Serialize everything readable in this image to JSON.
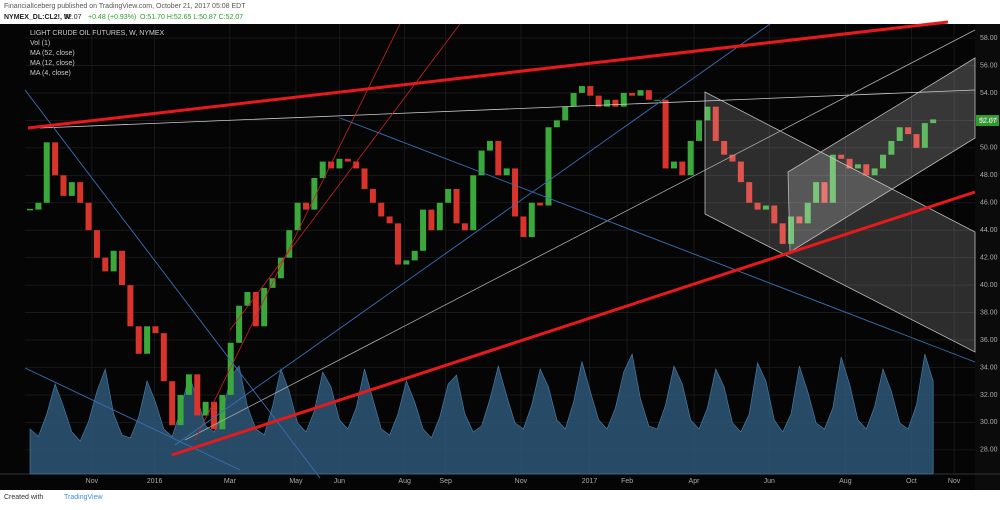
{
  "header": {
    "publisher": "FinancialIceberg published on TradingView.com, October 21, 2017 05:08 EDT",
    "symbol": "NYMEX_DL:CL2!, W",
    "last": "52.07",
    "change": "+0.48 (+0.93%)",
    "ohlc": "O:51.70 H:52.65 L:50.87 C:52.07"
  },
  "legend": {
    "title": "LIGHT CRUDE OIL FUTURES, W, NYMEX",
    "vol": "Vol (1)",
    "ma52": "MA (52, close)",
    "ma12": "MA (12, close)",
    "ma4": "MA (4, close)"
  },
  "footer": {
    "created": "Created with",
    "brand": "TradingView"
  },
  "chart_data": {
    "type": "candlestick",
    "up_color": "#3aa83a",
    "down_color": "#d9342b",
    "volume_color": "#2f5d7e",
    "xlim": [
      -0.6,
      113
    ],
    "ylim": [
      25.95,
      59.02
    ],
    "xticks": [
      {
        "value": 7.4,
        "label": "Nov"
      },
      {
        "value": 14.9,
        "label": "2016"
      },
      {
        "value": 23.9,
        "label": "Mar"
      },
      {
        "value": 31.8,
        "label": "May"
      },
      {
        "value": 37,
        "label": "Jun"
      },
      {
        "value": 44.8,
        "label": "Aug"
      },
      {
        "value": 49.7,
        "label": "Sep"
      },
      {
        "value": 58.7,
        "label": "Nov"
      },
      {
        "value": 66.9,
        "label": "2017"
      },
      {
        "value": 71.4,
        "label": "Feb"
      },
      {
        "value": 79.4,
        "label": "Apr"
      },
      {
        "value": 88.4,
        "label": "Jun"
      },
      {
        "value": 97.5,
        "label": "Aug"
      },
      {
        "value": 105.4,
        "label": "Oct"
      },
      {
        "value": 110.5,
        "label": "Nov"
      }
    ],
    "yticks": [
      {
        "value": 28,
        "label": "28.00"
      },
      {
        "value": 30,
        "label": "30.00"
      },
      {
        "value": 32,
        "label": "32.00"
      },
      {
        "value": 34,
        "label": "34.00"
      },
      {
        "value": 36,
        "label": "36.00"
      },
      {
        "value": 38,
        "label": "38.00"
      },
      {
        "value": 40,
        "label": "40.00"
      },
      {
        "value": 42,
        "label": "42.00"
      },
      {
        "value": 44,
        "label": "44.00"
      },
      {
        "value": 46,
        "label": "46.00"
      },
      {
        "value": 48,
        "label": "48.00"
      },
      {
        "value": 50,
        "label": "50.00"
      },
      {
        "value": 52,
        "label": "52.00"
      },
      {
        "value": 54,
        "label": "54.00"
      },
      {
        "value": 56,
        "label": "56.00"
      },
      {
        "value": 58,
        "label": "58.00"
      }
    ],
    "close": [
      45.5,
      46.0,
      50.4,
      48.0,
      46.5,
      47.5,
      46.0,
      44.0,
      42.0,
      41.0,
      42.5,
      40.0,
      37.0,
      35.0,
      37.0,
      36.5,
      33.0,
      29.8,
      32.0,
      33.5,
      30.5,
      31.5,
      29.5,
      32.0,
      35.8,
      38.5,
      39.5,
      37.0,
      39.8,
      40.5,
      42.0,
      44.0,
      46.0,
      45.5,
      47.8,
      49.0,
      48.5,
      49.2,
      49.0,
      48.5,
      47.0,
      46.0,
      45.0,
      44.5,
      41.5,
      41.8,
      42.5,
      45.5,
      44.0,
      46.0,
      47.0,
      44.5,
      44.0,
      48.0,
      49.8,
      50.5,
      48.0,
      48.5,
      45.0,
      43.5,
      46.0,
      45.8,
      51.5,
      52.0,
      53.0,
      54.0,
      54.5,
      53.8,
      53.0,
      53.5,
      53.0,
      54.0,
      53.8,
      54.2,
      53.5,
      53.5,
      48.5,
      49.0,
      48.0,
      50.5,
      52.0,
      53.0,
      50.5,
      49.5,
      49.0,
      47.5,
      46.0,
      45.5,
      45.8,
      44.5,
      43.0,
      45.0,
      44.5,
      46.0,
      47.5,
      46.0,
      49.5,
      49.2,
      48.5,
      48.8,
      48.0,
      48.5,
      49.5,
      50.5,
      51.5,
      51.0,
      50.0,
      51.8,
      52.07
    ],
    "volume": [
      30,
      25,
      40,
      60,
      45,
      28,
      22,
      35,
      55,
      70,
      40,
      26,
      24,
      38,
      62,
      48,
      30,
      25,
      42,
      66,
      50,
      32,
      28,
      40,
      65,
      72,
      45,
      30,
      26,
      45,
      70,
      55,
      34,
      28,
      42,
      68,
      58,
      36,
      30,
      44,
      70,
      50,
      30,
      26,
      40,
      62,
      48,
      30,
      24,
      38,
      60,
      66,
      40,
      28,
      32,
      50,
      72,
      52,
      34,
      30,
      46,
      70,
      58,
      36,
      30,
      48,
      75,
      55,
      36,
      30,
      44,
      68,
      80,
      50,
      32,
      30,
      46,
      72,
      60,
      36,
      30,
      44,
      70,
      58,
      34,
      28,
      40,
      74,
      62,
      36,
      28,
      40,
      72,
      55,
      34,
      30,
      44,
      78,
      60,
      36,
      30,
      45,
      70,
      55,
      34,
      30,
      46,
      80,
      62
    ]
  }
}
